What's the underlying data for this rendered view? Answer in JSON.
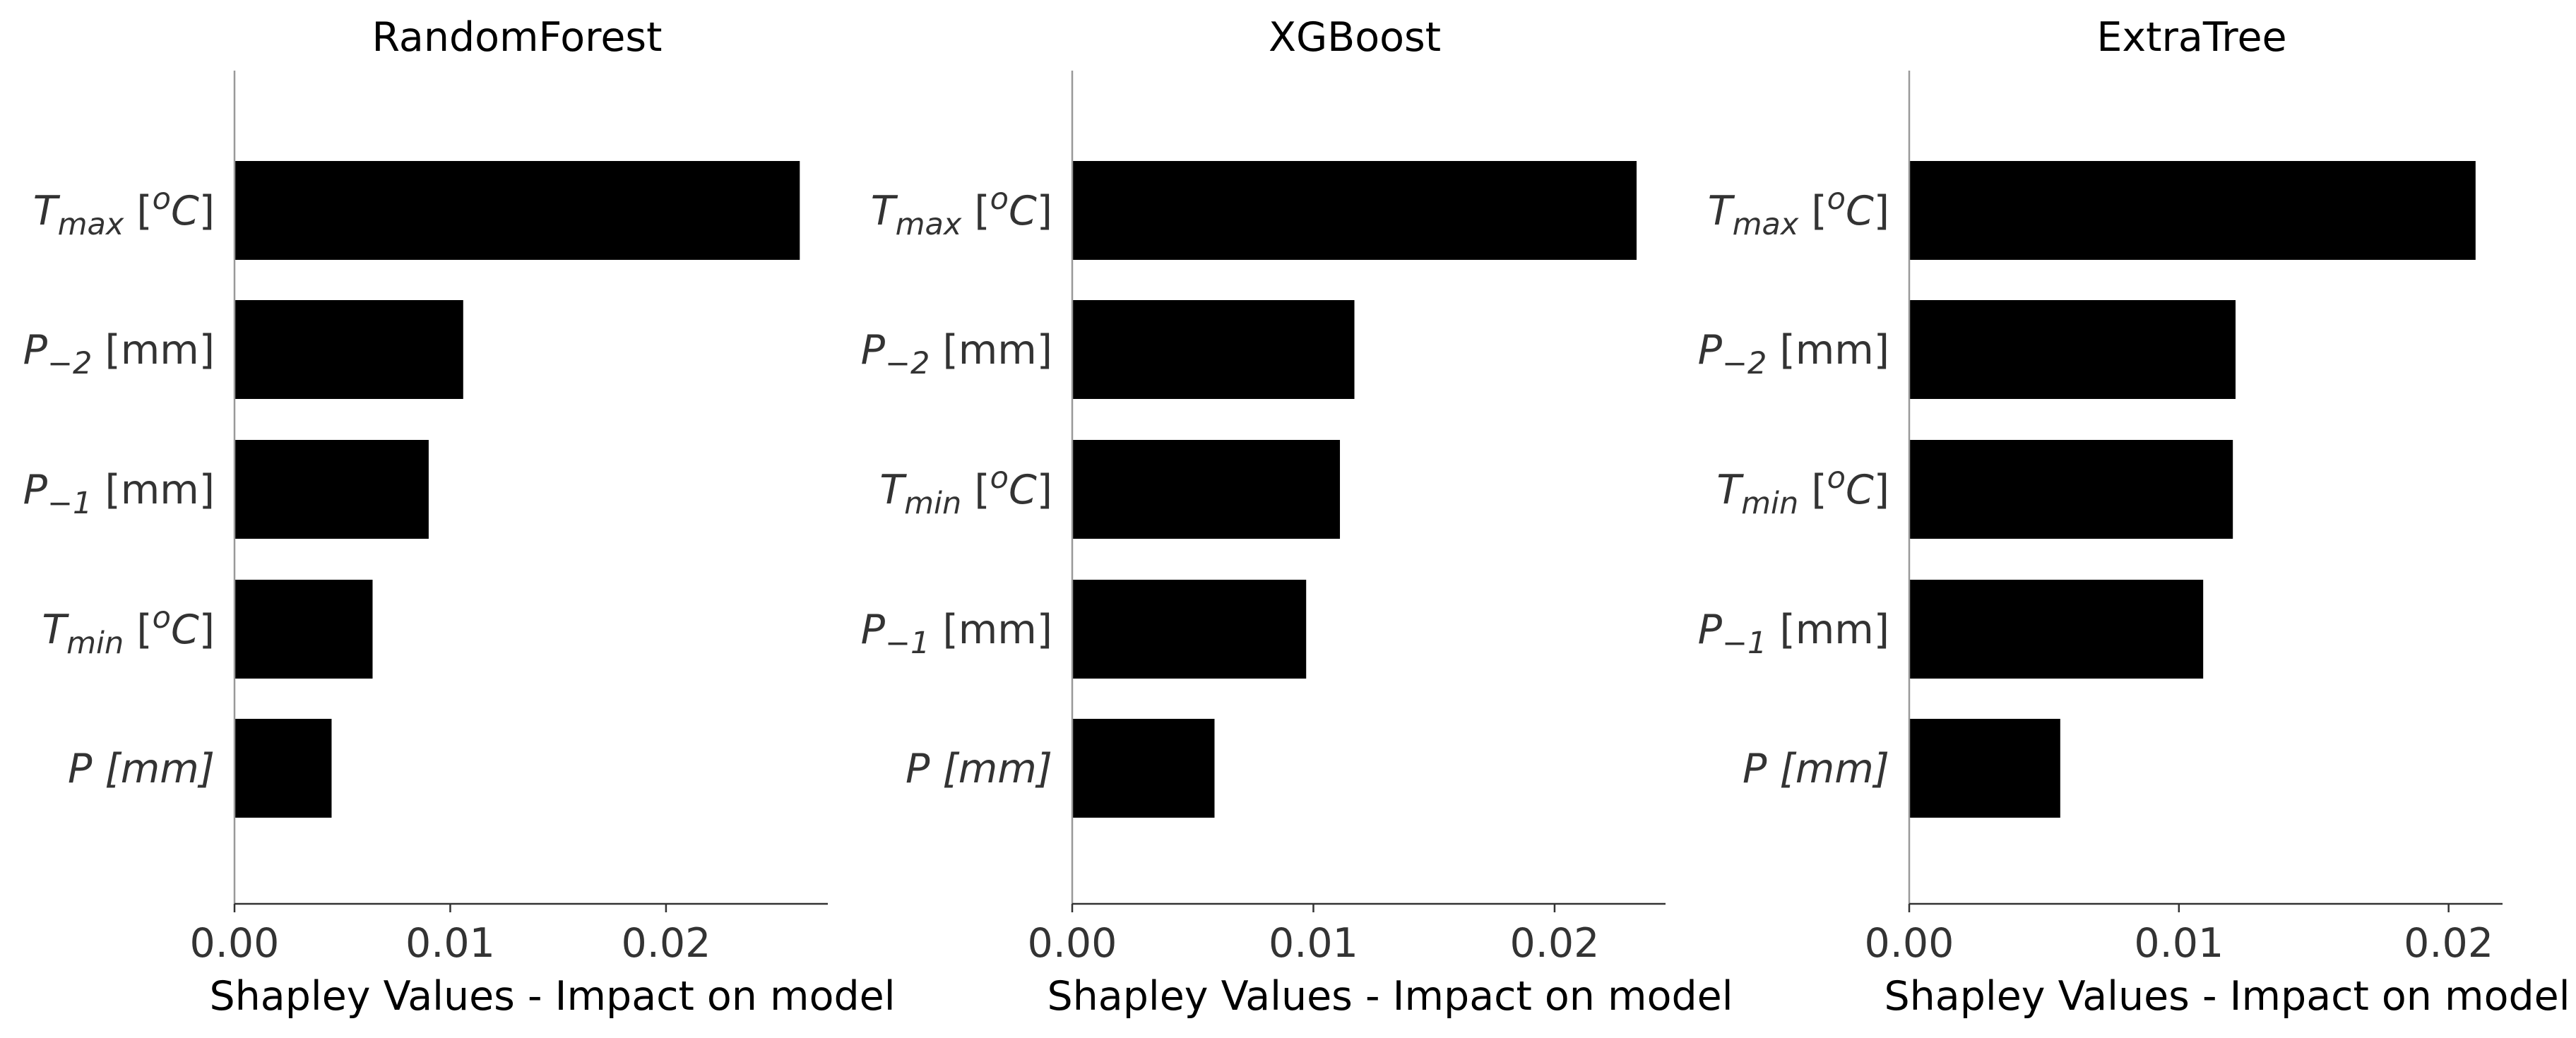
{
  "chart_data": [
    {
      "type": "bar",
      "orientation": "horizontal",
      "title": "RandomForest",
      "xlabel": "Shapley Values - Impact on model",
      "xlim": [
        0,
        0.0275
      ],
      "xticks": [
        "0.00",
        "0.01",
        "0.02"
      ],
      "categories": [
        "T_max [oC]",
        "P_-2 [mm]",
        "P_-1 [mm]",
        "T_min [oC]",
        "P [mm]"
      ],
      "values": [
        0.0262,
        0.0106,
        0.009,
        0.0064,
        0.0045
      ],
      "bar_color": "#000000"
    },
    {
      "type": "bar",
      "orientation": "horizontal",
      "title": "XGBoost",
      "xlabel": "Shapley Values - Impact on model",
      "xlim": [
        0,
        0.0246
      ],
      "xticks": [
        "0.00",
        "0.01",
        "0.02"
      ],
      "categories": [
        "T_max [oC]",
        "P_-2 [mm]",
        "T_min [oC]",
        "P_-1 [mm]",
        "P [mm]"
      ],
      "values": [
        0.0234,
        0.0117,
        0.0111,
        0.0097,
        0.0059
      ],
      "bar_color": "#000000"
    },
    {
      "type": "bar",
      "orientation": "horizontal",
      "title": "ExtraTree",
      "xlabel": "Shapley Values - Impact on model",
      "xlim": [
        0,
        0.022
      ],
      "xticks": [
        "0.00",
        "0.01",
        "0.02"
      ],
      "categories": [
        "T_max [oC]",
        "P_-2 [mm]",
        "T_min [oC]",
        "P_-1 [mm]",
        "P [mm]"
      ],
      "values": [
        0.021,
        0.0121,
        0.012,
        0.0109,
        0.0056
      ],
      "bar_color": "#000000"
    }
  ],
  "label_text": {
    "T_max [oC]": {
      "base": "T",
      "sub": "max",
      "open": " [",
      "sup": "o",
      "unit": "C",
      "close": "]"
    },
    "T_min [oC]": {
      "base": "T",
      "sub": "min",
      "open": " [",
      "sup": "o",
      "unit": "C",
      "close": "]"
    },
    "P_-2 [mm]": {
      "base": "P",
      "sub": "−2",
      "rest": " [mm]"
    },
    "P_-1 [mm]": {
      "base": "P",
      "sub": "−1",
      "rest": " [mm]"
    },
    "P [mm]": {
      "base": "P",
      "rest_italic": " [mm]"
    }
  }
}
